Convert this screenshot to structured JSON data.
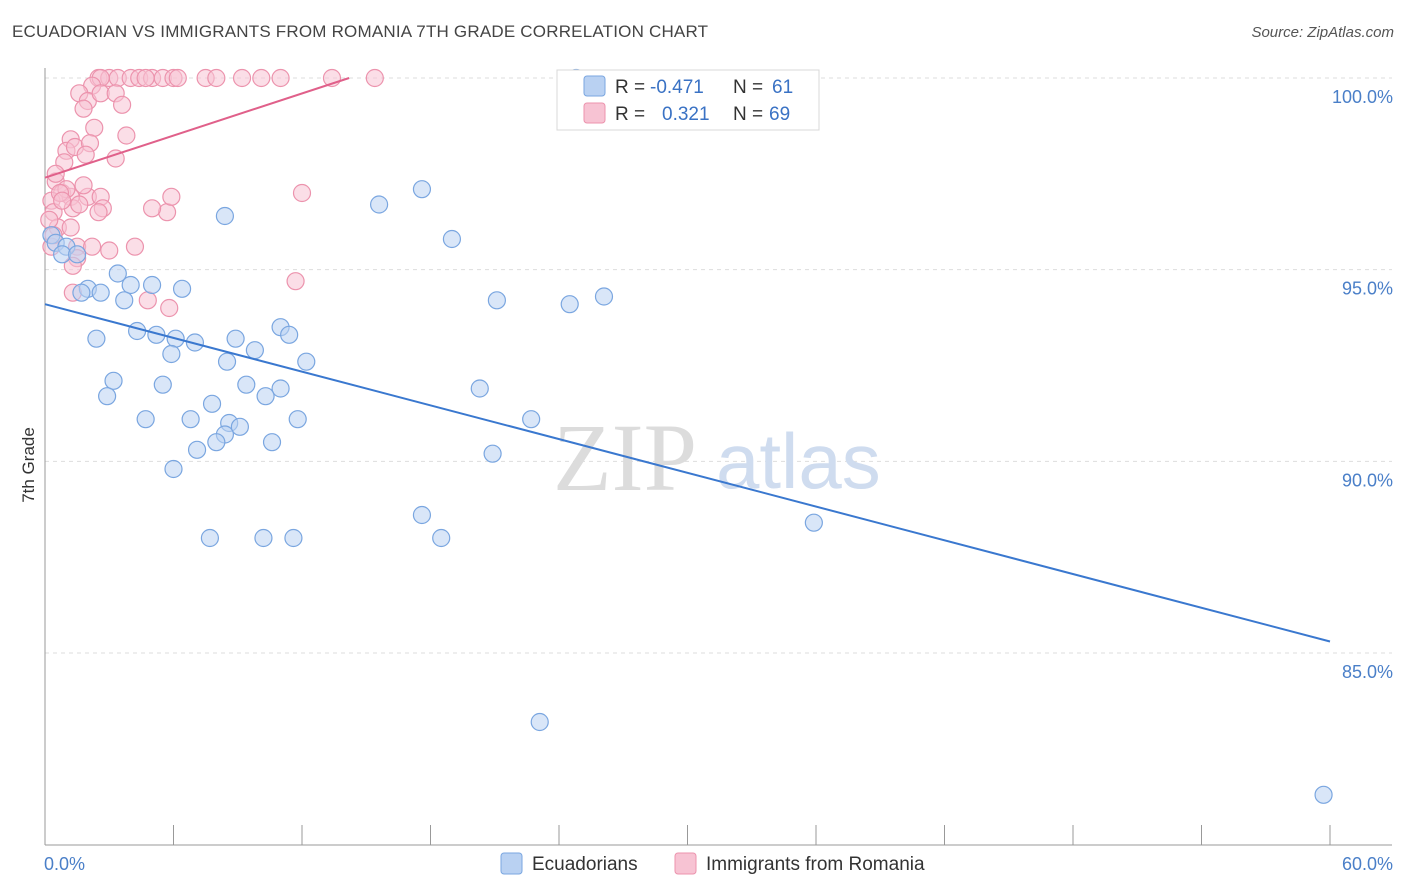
{
  "title": "ECUADORIAN VS IMMIGRANTS FROM ROMANIA 7TH GRADE CORRELATION CHART",
  "source": "Source: ZipAtlas.com",
  "watermark": {
    "zip": "ZIP",
    "atlas": "atlas"
  },
  "colors": {
    "blue_fill": "#b9d1f2",
    "blue_stroke": "#7aa6e0",
    "blue_line": "#3a78cf",
    "pink_fill": "#f7c3d3",
    "pink_stroke": "#ec93ad",
    "pink_line": "#e0608a",
    "grid": "#dddddd",
    "tick_label": "#4a7fc8"
  },
  "legend": {
    "rows": [
      {
        "r_label": "R =",
        "r_value": "-0.471",
        "n_label": "N =",
        "n_value": "61"
      },
      {
        "r_label": "R =",
        "r_value": "0.321",
        "n_label": "N =",
        "n_value": "69"
      }
    ]
  },
  "bottom_legend": [
    "Ecuadorians",
    "Immigrants from Romania"
  ],
  "chart_data": {
    "type": "scatter",
    "title": "ECUADORIAN VS IMMIGRANTS FROM ROMANIA 7TH GRADE CORRELATION CHART",
    "xlabel": "",
    "ylabel": "7th Grade",
    "xlim": [
      0,
      60
    ],
    "ylim": [
      80.5,
      100.7
    ],
    "x_tick_labels": [
      "0.0%",
      "60.0%"
    ],
    "y_ticks": [
      85,
      90,
      95,
      100
    ],
    "y_tick_labels": [
      "85.0%",
      "90.0%",
      "95.0%",
      "100.0%"
    ],
    "grid": true,
    "legend_position": "top-center",
    "series": [
      {
        "name": "Ecuadorians",
        "color": "#7aa6e0",
        "trend": {
          "x0": 0,
          "y0": 94.1,
          "x1": 60,
          "y1": 85.3
        },
        "points": [
          [
            0.3,
            95.9
          ],
          [
            0.5,
            95.7
          ],
          [
            1.0,
            95.6
          ],
          [
            0.8,
            95.4
          ],
          [
            1.5,
            95.4
          ],
          [
            3.4,
            94.9
          ],
          [
            2.0,
            94.5
          ],
          [
            1.7,
            94.4
          ],
          [
            4.0,
            94.6
          ],
          [
            5.0,
            94.6
          ],
          [
            6.4,
            94.5
          ],
          [
            2.6,
            94.4
          ],
          [
            3.7,
            94.2
          ],
          [
            2.4,
            93.2
          ],
          [
            4.3,
            93.4
          ],
          [
            5.2,
            93.3
          ],
          [
            6.1,
            93.2
          ],
          [
            7.0,
            93.1
          ],
          [
            5.9,
            92.8
          ],
          [
            8.9,
            93.2
          ],
          [
            9.8,
            92.9
          ],
          [
            11.0,
            93.5
          ],
          [
            11.4,
            93.3
          ],
          [
            8.5,
            92.6
          ],
          [
            12.2,
            92.6
          ],
          [
            3.2,
            92.1
          ],
          [
            5.5,
            92.0
          ],
          [
            9.4,
            92.0
          ],
          [
            11.0,
            91.9
          ],
          [
            10.3,
            91.7
          ],
          [
            2.9,
            91.7
          ],
          [
            7.8,
            91.5
          ],
          [
            4.7,
            91.1
          ],
          [
            6.8,
            91.1
          ],
          [
            8.6,
            91.0
          ],
          [
            9.1,
            90.9
          ],
          [
            11.8,
            91.1
          ],
          [
            8.4,
            90.7
          ],
          [
            10.6,
            90.5
          ],
          [
            7.1,
            90.3
          ],
          [
            6.0,
            89.8
          ],
          [
            7.7,
            88.0
          ],
          [
            10.2,
            88.0
          ],
          [
            11.6,
            88.0
          ],
          [
            17.6,
            88.6
          ],
          [
            18.5,
            88.0
          ],
          [
            20.9,
            90.2
          ],
          [
            8.0,
            90.5
          ],
          [
            15.6,
            96.7
          ],
          [
            17.6,
            97.1
          ],
          [
            19.0,
            95.8
          ],
          [
            21.1,
            94.2
          ],
          [
            24.5,
            94.1
          ],
          [
            26.1,
            94.3
          ],
          [
            22.7,
            91.1
          ],
          [
            35.9,
            88.4
          ],
          [
            24.8,
            100.0
          ],
          [
            8.4,
            96.4
          ],
          [
            20.3,
            91.9
          ],
          [
            23.1,
            83.2
          ],
          [
            59.7,
            81.3
          ]
        ]
      },
      {
        "name": "Immigrants from Romania",
        "color": "#ec93ad",
        "trend": {
          "x0": 0,
          "y0": 97.4,
          "x1": 14.2,
          "y1": 100.0
        },
        "points": [
          [
            2.5,
            100.0
          ],
          [
            3.0,
            100.0
          ],
          [
            3.4,
            100.0
          ],
          [
            4.0,
            100.0
          ],
          [
            4.4,
            100.0
          ],
          [
            5.0,
            100.0
          ],
          [
            5.5,
            100.0
          ],
          [
            6.0,
            100.0
          ],
          [
            6.2,
            100.0
          ],
          [
            7.5,
            100.0
          ],
          [
            8.0,
            100.0
          ],
          [
            9.2,
            100.0
          ],
          [
            10.1,
            100.0
          ],
          [
            11.0,
            100.0
          ],
          [
            13.4,
            100.0
          ],
          [
            15.4,
            100.0
          ],
          [
            4.7,
            100.0
          ],
          [
            2.6,
            100.0
          ],
          [
            2.2,
            99.8
          ],
          [
            1.6,
            99.6
          ],
          [
            2.0,
            99.4
          ],
          [
            2.6,
            99.6
          ],
          [
            3.3,
            99.6
          ],
          [
            1.8,
            99.2
          ],
          [
            3.6,
            99.3
          ],
          [
            2.3,
            98.7
          ],
          [
            3.8,
            98.5
          ],
          [
            1.2,
            98.4
          ],
          [
            1.0,
            98.1
          ],
          [
            1.4,
            98.2
          ],
          [
            2.1,
            98.3
          ],
          [
            0.9,
            97.8
          ],
          [
            1.9,
            98.0
          ],
          [
            3.3,
            97.9
          ],
          [
            0.5,
            97.3
          ],
          [
            0.8,
            97.0
          ],
          [
            0.3,
            96.8
          ],
          [
            1.2,
            96.9
          ],
          [
            2.0,
            96.9
          ],
          [
            2.6,
            96.9
          ],
          [
            0.4,
            96.5
          ],
          [
            1.3,
            96.6
          ],
          [
            1.6,
            96.7
          ],
          [
            2.7,
            96.6
          ],
          [
            5.7,
            96.5
          ],
          [
            0.6,
            96.1
          ],
          [
            1.2,
            96.1
          ],
          [
            0.3,
            95.6
          ],
          [
            1.5,
            95.6
          ],
          [
            2.2,
            95.6
          ],
          [
            3.0,
            95.5
          ],
          [
            1.5,
            95.3
          ],
          [
            1.3,
            95.1
          ],
          [
            4.2,
            95.6
          ],
          [
            5.0,
            96.6
          ],
          [
            5.9,
            96.9
          ],
          [
            11.7,
            94.7
          ],
          [
            1.3,
            94.4
          ],
          [
            4.8,
            94.2
          ],
          [
            5.8,
            94.0
          ],
          [
            12.0,
            97.0
          ],
          [
            0.5,
            97.5
          ],
          [
            1.0,
            97.1
          ],
          [
            0.7,
            97.0
          ],
          [
            2.5,
            96.5
          ],
          [
            0.8,
            96.8
          ],
          [
            1.8,
            97.2
          ],
          [
            0.4,
            95.9
          ],
          [
            0.2,
            96.3
          ]
        ]
      }
    ]
  }
}
